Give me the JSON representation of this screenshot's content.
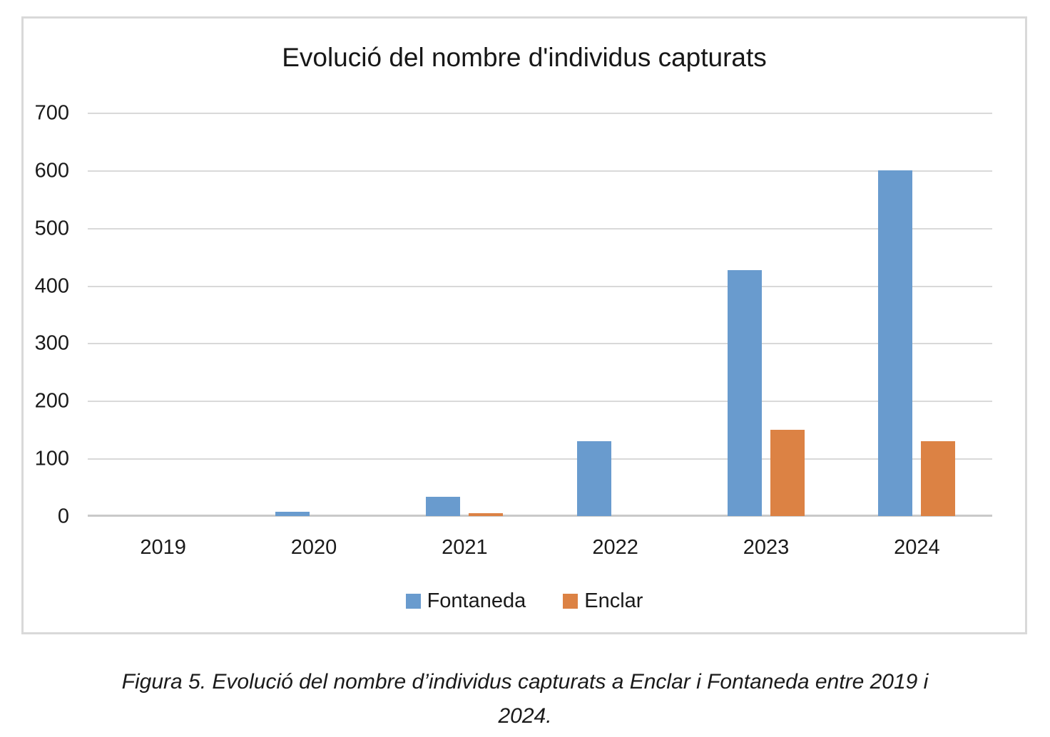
{
  "chart_data": {
    "type": "bar",
    "title": "Evolució del nombre d'individus capturats",
    "categories": [
      "2019",
      "2020",
      "2021",
      "2022",
      "2023",
      "2024"
    ],
    "series": [
      {
        "name": "Fontaneda",
        "color": "#699bce",
        "values": [
          0,
          7,
          33,
          130,
          427,
          600
        ]
      },
      {
        "name": "Enclar",
        "color": "#dc8244",
        "values": [
          0,
          0,
          5,
          0,
          150,
          130
        ]
      }
    ],
    "xlabel": "",
    "ylabel": "",
    "ylim": [
      0,
      700
    ],
    "yticks": [
      0,
      100,
      200,
      300,
      400,
      500,
      600,
      700
    ],
    "grid": true,
    "legend_position": "bottom",
    "gridline_color": "#d9d9d9",
    "axis_line_color": "#c9c9c9"
  },
  "caption": {
    "line1": "Figura 5. Evolució del nombre d’individus capturats a Enclar i Fontaneda entre 2019 i",
    "line2": "2024."
  }
}
